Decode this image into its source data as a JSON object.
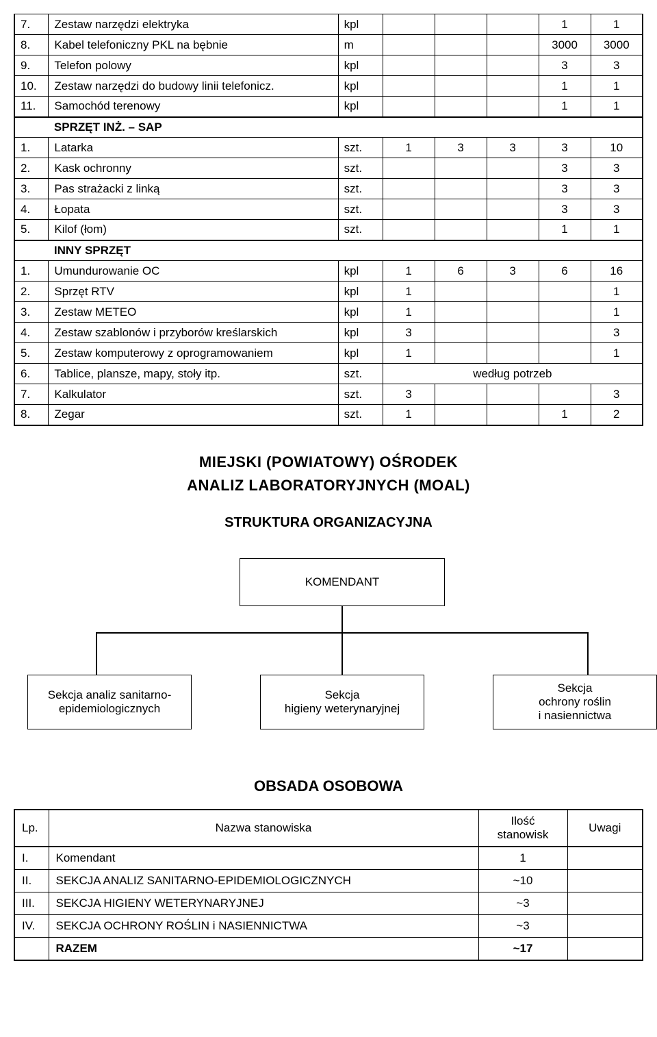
{
  "equipment": {
    "rows": [
      {
        "num": "7.",
        "name": "Zestaw narzędzi elektryka",
        "unit": "kpl",
        "v": [
          "",
          "",
          "",
          "1",
          "1"
        ],
        "section": false,
        "thickTop": false,
        "thickBottom": false
      },
      {
        "num": "8.",
        "name": "Kabel telefoniczny PKL na bębnie",
        "unit": "m",
        "v": [
          "",
          "",
          "",
          "3000",
          "3000"
        ],
        "section": false,
        "thickTop": false,
        "thickBottom": false
      },
      {
        "num": "9.",
        "name": "Telefon polowy",
        "unit": "kpl",
        "v": [
          "",
          "",
          "",
          "3",
          "3"
        ],
        "section": false,
        "thickTop": false,
        "thickBottom": false
      },
      {
        "num": "10.",
        "name": "Zestaw narzędzi do budowy linii telefonicz.",
        "unit": "kpl",
        "v": [
          "",
          "",
          "",
          "1",
          "1"
        ],
        "section": false,
        "thickTop": false,
        "thickBottom": false
      },
      {
        "num": "11.",
        "name": "Samochód terenowy",
        "unit": "kpl",
        "v": [
          "",
          "",
          "",
          "1",
          "1"
        ],
        "section": false,
        "thickTop": false,
        "thickBottom": true
      },
      {
        "num": "",
        "name": "SPRZĘT INŻ. – SAP",
        "unit": "",
        "v": [
          "",
          "",
          "",
          "",
          ""
        ],
        "section": true,
        "thickTop": true,
        "thickBottom": false
      },
      {
        "num": "1.",
        "name": "Latarka",
        "unit": "szt.",
        "v": [
          "1",
          "3",
          "3",
          "3",
          "10"
        ],
        "section": false,
        "thickTop": false,
        "thickBottom": false
      },
      {
        "num": "2.",
        "name": "Kask ochronny",
        "unit": "szt.",
        "v": [
          "",
          "",
          "",
          "3",
          "3"
        ],
        "section": false,
        "thickTop": false,
        "thickBottom": false
      },
      {
        "num": "3.",
        "name": "Pas strażacki z linką",
        "unit": "szt.",
        "v": [
          "",
          "",
          "",
          "3",
          "3"
        ],
        "section": false,
        "thickTop": false,
        "thickBottom": false
      },
      {
        "num": "4.",
        "name": "Łopata",
        "unit": "szt.",
        "v": [
          "",
          "",
          "",
          "3",
          "3"
        ],
        "section": false,
        "thickTop": false,
        "thickBottom": false
      },
      {
        "num": "5.",
        "name": "Kilof (łom)",
        "unit": "szt.",
        "v": [
          "",
          "",
          "",
          "1",
          "1"
        ],
        "section": false,
        "thickTop": false,
        "thickBottom": true
      },
      {
        "num": "",
        "name": "INNY SPRZĘT",
        "unit": "",
        "v": [
          "",
          "",
          "",
          "",
          ""
        ],
        "section": true,
        "thickTop": true,
        "thickBottom": false
      },
      {
        "num": "1.",
        "name": "Umundurowanie OC",
        "unit": "kpl",
        "v": [
          "1",
          "6",
          "3",
          "6",
          "16"
        ],
        "section": false,
        "thickTop": false,
        "thickBottom": false
      },
      {
        "num": "2.",
        "name": "Sprzęt RTV",
        "unit": "kpl",
        "v": [
          "1",
          "",
          "",
          "",
          "1"
        ],
        "section": false,
        "thickTop": false,
        "thickBottom": false
      },
      {
        "num": "3.",
        "name": "Zestaw METEO",
        "unit": "kpl",
        "v": [
          "1",
          "",
          "",
          "",
          "1"
        ],
        "section": false,
        "thickTop": false,
        "thickBottom": false
      },
      {
        "num": "4.",
        "name": "Zestaw szablonów i przyborów kreślarskich",
        "unit": "kpl",
        "v": [
          "3",
          "",
          "",
          "",
          "3"
        ],
        "section": false,
        "thickTop": false,
        "thickBottom": false
      },
      {
        "num": "5.",
        "name": "Zestaw komputerowy z oprogramowaniem",
        "unit": "kpl",
        "v": [
          "1",
          "",
          "",
          "",
          "1"
        ],
        "section": false,
        "thickTop": false,
        "thickBottom": false
      },
      {
        "num": "6.",
        "name": "Tablice, plansze, mapy, stoły itp.",
        "unit": "szt.",
        "v": null,
        "note": "według potrzeb",
        "section": false,
        "thickTop": false,
        "thickBottom": false
      },
      {
        "num": "7.",
        "name": "Kalkulator",
        "unit": "szt.",
        "v": [
          "3",
          "",
          "",
          "",
          "3"
        ],
        "section": false,
        "thickTop": false,
        "thickBottom": false
      },
      {
        "num": "8.",
        "name": "Zegar",
        "unit": "szt.",
        "v": [
          "1",
          "",
          "",
          "1",
          "2"
        ],
        "section": false,
        "thickTop": false,
        "thickBottom": false
      }
    ]
  },
  "headings": {
    "title1": "MIEJSKI  (POWIATOWY)  OŚRODEK",
    "title2": "ANALIZ  LABORATORYJNYCH (MOAL)",
    "structure": "STRUKTURA  ORGANIZACYJNA"
  },
  "org": {
    "top": "KOMENDANT",
    "left": "Sekcja analiz sanitarno-epidemiologicznych",
    "center": "Sekcja\nhigieny weterynaryjnej",
    "right": "Sekcja\nochrony roślin\ni nasiennictwa"
  },
  "staff": {
    "title": "OBSADA  OSOBOWA",
    "head": {
      "lp": "Lp.",
      "name": "Nazwa stanowiska",
      "count": "Ilość stanowisk",
      "uwagi": "Uwagi"
    },
    "rows": [
      {
        "lp": "I.",
        "name": "Komendant",
        "count": "1",
        "uwagi": "",
        "bold": false,
        "thick": true
      },
      {
        "lp": "II.",
        "name": "SEKCJA ANALIZ SANITARNO-EPIDEMIOLOGICZNYCH",
        "count": "~10",
        "uwagi": "",
        "bold": false,
        "thick": false
      },
      {
        "lp": "III.",
        "name": "SEKCJA HIGIENY WETERYNARYJNEJ",
        "count": "~3",
        "uwagi": "",
        "bold": false,
        "thick": false
      },
      {
        "lp": "IV.",
        "name": "SEKCJA OCHRONY ROŚLIN i NASIENNICTWA",
        "count": "~3",
        "uwagi": "",
        "bold": false,
        "thick": false
      },
      {
        "lp": "",
        "name": "RAZEM",
        "count": "~17",
        "uwagi": "",
        "bold": true,
        "thick": false
      }
    ]
  }
}
